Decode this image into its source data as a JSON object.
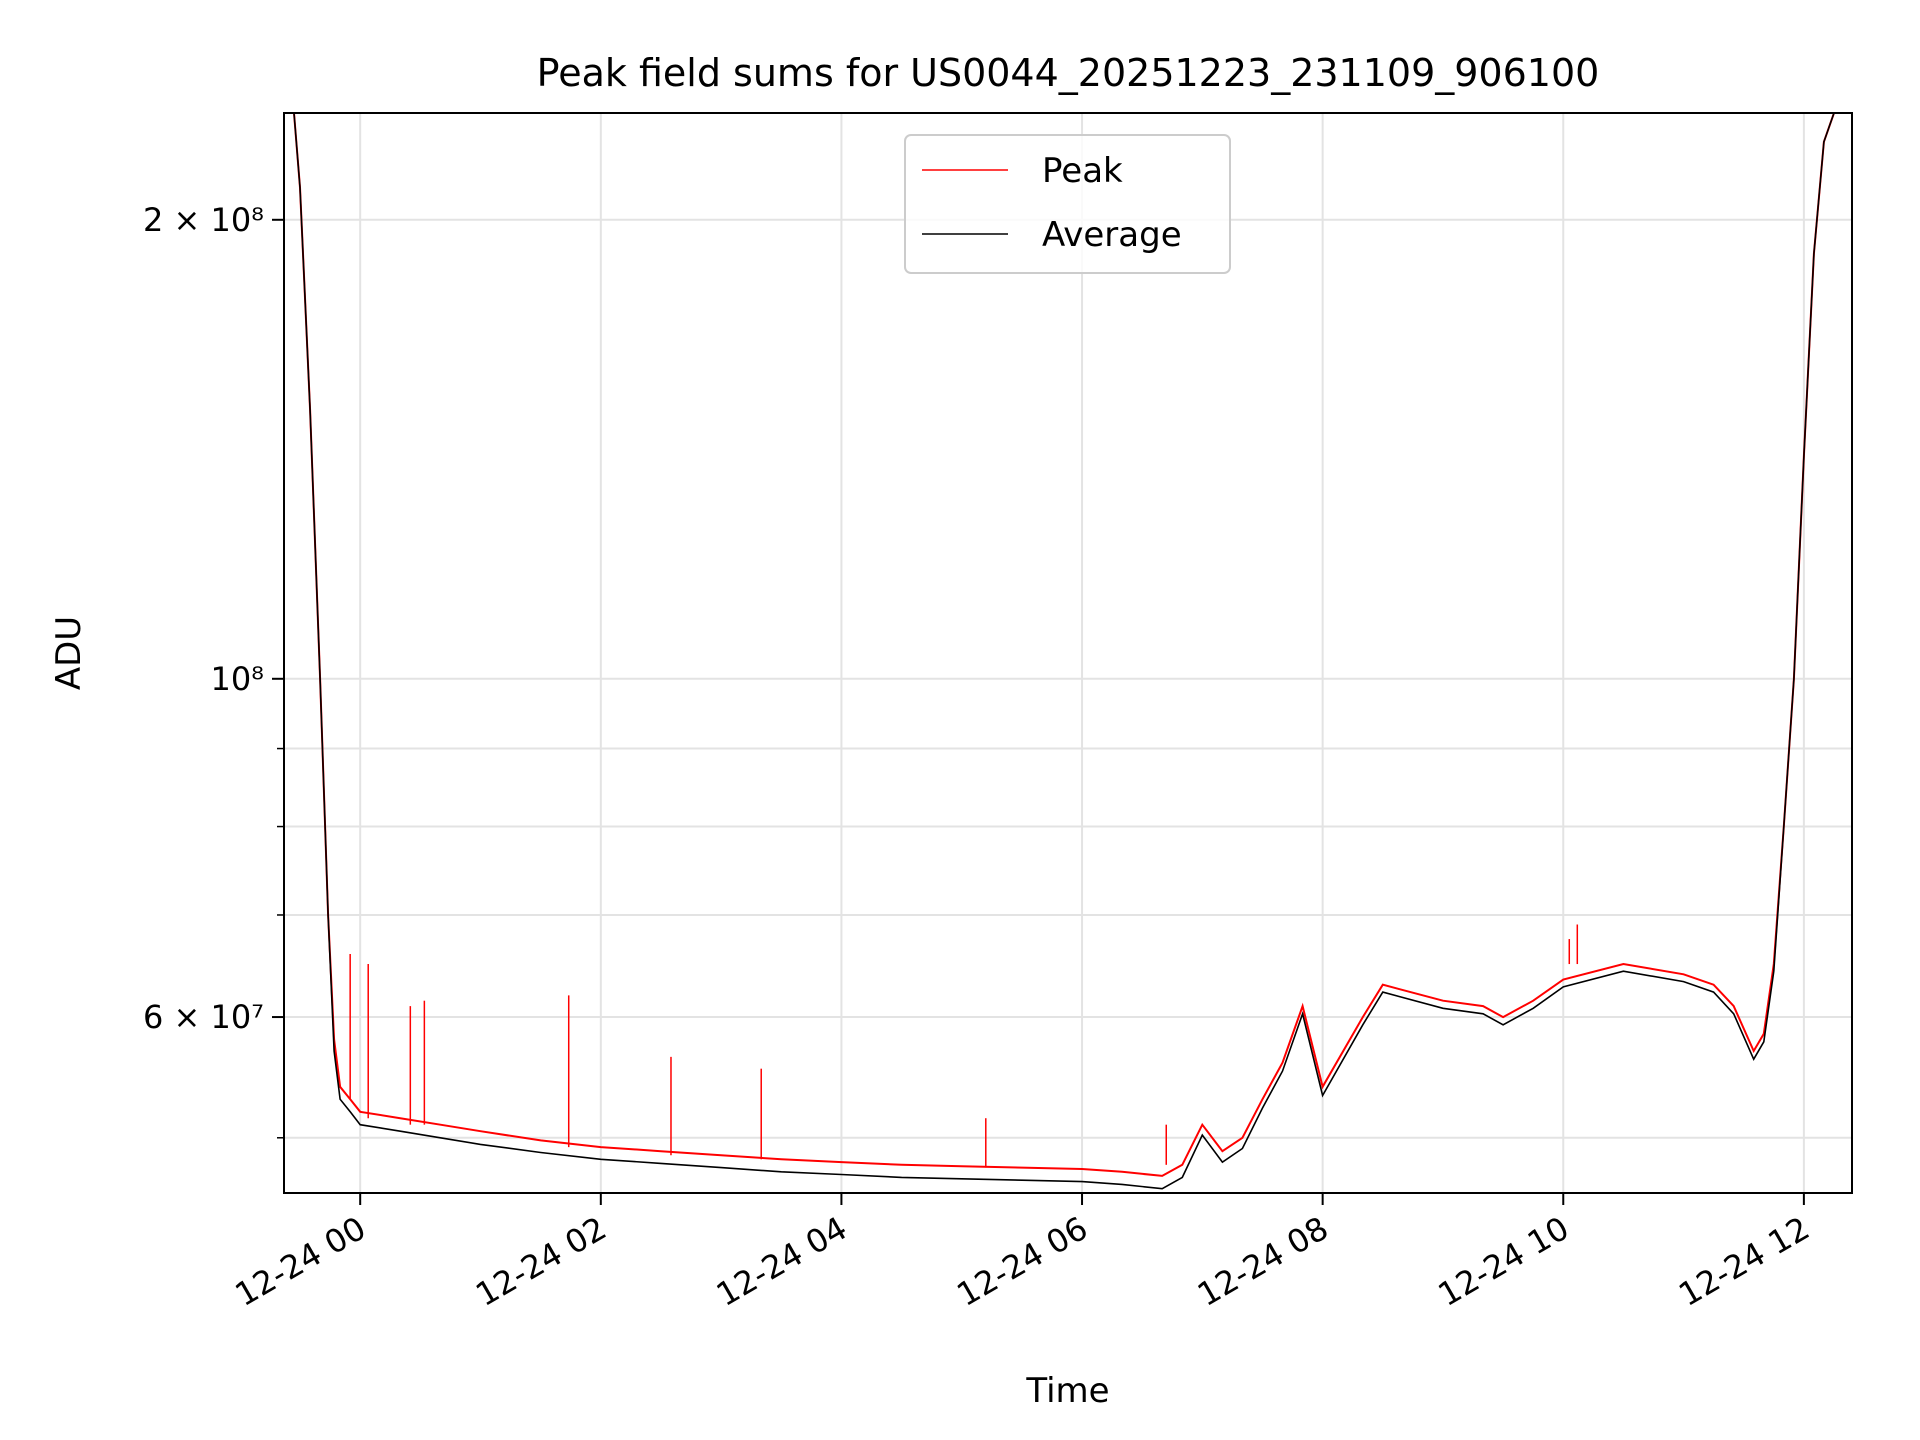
{
  "chart_data": {
    "type": "line",
    "title": "Peak field sums for US0044_20251223_231109_906100",
    "xlabel": "Time",
    "ylabel": "ADU",
    "y_scale": "log",
    "ylim": [
      46000000,
      235000000
    ],
    "xlim": [
      "2025-12-23 23:22",
      "2025-12-24 12:24"
    ],
    "grid": true,
    "legend_position": "upper center",
    "x_ticks": [
      {
        "value": "2025-12-24 00:00",
        "label": "12-24 00"
      },
      {
        "value": "2025-12-24 02:00",
        "label": "12-24 02"
      },
      {
        "value": "2025-12-24 04:00",
        "label": "12-24 04"
      },
      {
        "value": "2025-12-24 06:00",
        "label": "12-24 06"
      },
      {
        "value": "2025-12-24 08:00",
        "label": "12-24 08"
      },
      {
        "value": "2025-12-24 10:00",
        "label": "12-24 10"
      },
      {
        "value": "2025-12-24 12:00",
        "label": "12-24 12"
      }
    ],
    "y_major_ticks": [
      {
        "value": 60000000,
        "label": "6 × 10⁷"
      },
      {
        "value": 100000000,
        "label": "10⁸"
      },
      {
        "value": 200000000,
        "label": "2 × 10⁸"
      }
    ],
    "y_minor_ticks": [
      50000000,
      70000000,
      80000000,
      90000000
    ],
    "series": [
      {
        "name": "Peak",
        "color": "#ff0000",
        "x": [
          "2025-12-23 23:22",
          "2025-12-23 23:27",
          "2025-12-23 23:30",
          "2025-12-23 23:35",
          "2025-12-23 23:40",
          "2025-12-23 23:44",
          "2025-12-23 23:47",
          "2025-12-23 23:50",
          "2025-12-23 23:55",
          "2025-12-24 00:00",
          "2025-12-24 00:20",
          "2025-12-24 00:40",
          "2025-12-24 01:00",
          "2025-12-24 01:30",
          "2025-12-24 02:00",
          "2025-12-24 02:30",
          "2025-12-24 03:00",
          "2025-12-24 03:30",
          "2025-12-24 04:00",
          "2025-12-24 04:30",
          "2025-12-24 05:00",
          "2025-12-24 05:30",
          "2025-12-24 06:00",
          "2025-12-24 06:20",
          "2025-12-24 06:40",
          "2025-12-24 06:50",
          "2025-12-24 07:00",
          "2025-12-24 07:10",
          "2025-12-24 07:20",
          "2025-12-24 07:30",
          "2025-12-24 07:40",
          "2025-12-24 07:50",
          "2025-12-24 08:00",
          "2025-12-24 08:20",
          "2025-12-24 08:30",
          "2025-12-24 09:00",
          "2025-12-24 09:20",
          "2025-12-24 09:30",
          "2025-12-24 09:45",
          "2025-12-24 10:00",
          "2025-12-24 10:30",
          "2025-12-24 11:00",
          "2025-12-24 11:15",
          "2025-12-24 11:25",
          "2025-12-24 11:35",
          "2025-12-24 11:40",
          "2025-12-24 11:45",
          "2025-12-24 11:50",
          "2025-12-24 11:55",
          "2025-12-24 12:00",
          "2025-12-24 12:05",
          "2025-12-24 12:10",
          "2025-12-24 12:15",
          "2025-12-24 12:24"
        ],
        "values": [
          235000000,
          235000000,
          210000000,
          150000000,
          100000000,
          70000000,
          58000000,
          54000000,
          53000000,
          52000000,
          51500000,
          51000000,
          50500000,
          49800000,
          49300000,
          49000000,
          48700000,
          48400000,
          48200000,
          48000000,
          47900000,
          47800000,
          47700000,
          47500000,
          47200000,
          48000000,
          51000000,
          49000000,
          50000000,
          53000000,
          56000000,
          61000000,
          54000000,
          60000000,
          63000000,
          61500000,
          61000000,
          60000000,
          61500000,
          63500000,
          65000000,
          64000000,
          63000000,
          61000000,
          57000000,
          58500000,
          65000000,
          80000000,
          100000000,
          140000000,
          190000000,
          225000000,
          235000000,
          235000000
        ],
        "spikes": [
          {
            "x": "2025-12-23 23:55",
            "value": 66000000
          },
          {
            "x": "2025-12-24 00:04",
            "value": 65000000
          },
          {
            "x": "2025-12-24 00:25",
            "value": 61000000
          },
          {
            "x": "2025-12-24 00:32",
            "value": 61500000
          },
          {
            "x": "2025-12-24 01:44",
            "value": 62000000
          },
          {
            "x": "2025-12-24 02:35",
            "value": 56500000
          },
          {
            "x": "2025-12-24 03:20",
            "value": 55500000
          },
          {
            "x": "2025-12-24 05:12",
            "value": 51500000
          },
          {
            "x": "2025-12-24 06:42",
            "value": 51000000
          },
          {
            "x": "2025-12-24 10:03",
            "value": 67500000
          },
          {
            "x": "2025-12-24 10:07",
            "value": 69000000
          }
        ]
      },
      {
        "name": "Average",
        "color": "#000000",
        "x": [
          "2025-12-23 23:22",
          "2025-12-23 23:27",
          "2025-12-23 23:30",
          "2025-12-23 23:35",
          "2025-12-23 23:40",
          "2025-12-23 23:44",
          "2025-12-23 23:47",
          "2025-12-23 23:50",
          "2025-12-23 23:55",
          "2025-12-24 00:00",
          "2025-12-24 00:20",
          "2025-12-24 00:40",
          "2025-12-24 01:00",
          "2025-12-24 01:30",
          "2025-12-24 02:00",
          "2025-12-24 02:30",
          "2025-12-24 03:00",
          "2025-12-24 03:30",
          "2025-12-24 04:00",
          "2025-12-24 04:30",
          "2025-12-24 05:00",
          "2025-12-24 05:30",
          "2025-12-24 06:00",
          "2025-12-24 06:20",
          "2025-12-24 06:40",
          "2025-12-24 06:50",
          "2025-12-24 07:00",
          "2025-12-24 07:10",
          "2025-12-24 07:20",
          "2025-12-24 07:30",
          "2025-12-24 07:40",
          "2025-12-24 07:50",
          "2025-12-24 08:00",
          "2025-12-24 08:20",
          "2025-12-24 08:30",
          "2025-12-24 09:00",
          "2025-12-24 09:20",
          "2025-12-24 09:30",
          "2025-12-24 09:45",
          "2025-12-24 10:00",
          "2025-12-24 10:30",
          "2025-12-24 11:00",
          "2025-12-24 11:15",
          "2025-12-24 11:25",
          "2025-12-24 11:35",
          "2025-12-24 11:40",
          "2025-12-24 11:45",
          "2025-12-24 11:50",
          "2025-12-24 11:55",
          "2025-12-24 12:00",
          "2025-12-24 12:05",
          "2025-12-24 12:10",
          "2025-12-24 12:15",
          "2025-12-24 12:24"
        ],
        "values": [
          235000000,
          235000000,
          210000000,
          150000000,
          100000000,
          70000000,
          57000000,
          53000000,
          52000000,
          51000000,
          50500000,
          50000000,
          49500000,
          48900000,
          48400000,
          48100000,
          47800000,
          47500000,
          47300000,
          47100000,
          47000000,
          46900000,
          46800000,
          46600000,
          46300000,
          47100000,
          50200000,
          48200000,
          49200000,
          52300000,
          55300000,
          60300000,
          53300000,
          59300000,
          62300000,
          60800000,
          60300000,
          59300000,
          60800000,
          62800000,
          64300000,
          63300000,
          62300000,
          60300000,
          56300000,
          57800000,
          64300000,
          80000000,
          100000000,
          140000000,
          190000000,
          225000000,
          235000000,
          235000000
        ]
      }
    ]
  }
}
